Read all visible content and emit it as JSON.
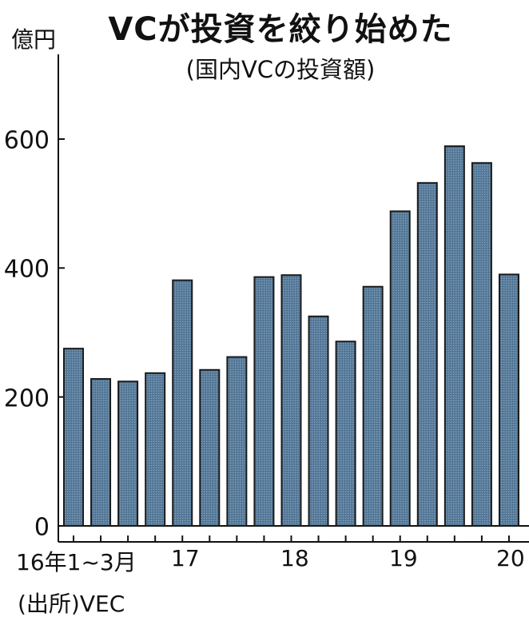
{
  "header": {
    "title": "VCが投資を絞り始めた",
    "subtitle": "(国内VCの投資額)",
    "unit": "億円"
  },
  "footer": {
    "source": "(出所)VEC"
  },
  "axis": {
    "y_ticks": [
      "0",
      "200",
      "400",
      "600"
    ],
    "x_labels": [
      "16年1~3月",
      "17",
      "18",
      "19",
      "20"
    ]
  },
  "colors": {
    "bar_fill": "#5b7f9e",
    "bar_stroke": "#1a1a1a",
    "axis": "#111111"
  },
  "chart_data": {
    "type": "bar",
    "title": "VCが投資を絞り始めた",
    "subtitle": "(国内VCの投資額)",
    "xlabel": "",
    "ylabel": "億円",
    "ylim": [
      0,
      650
    ],
    "yticks": [
      0,
      200,
      400,
      600
    ],
    "grid": false,
    "legend": null,
    "source": "(出所)VEC",
    "categories": [
      "2016 Q1",
      "2016 Q2",
      "2016 Q3",
      "2016 Q4",
      "2017 Q1",
      "2017 Q2",
      "2017 Q3",
      "2017 Q4",
      "2018 Q1",
      "2018 Q2",
      "2018 Q3",
      "2018 Q4",
      "2019 Q1",
      "2019 Q2",
      "2019 Q3",
      "2019 Q4",
      "2020 Q1"
    ],
    "tick_labels": {
      "0": "16年1~3月",
      "4": "17",
      "8": "18",
      "12": "19",
      "16": "20"
    },
    "values": [
      275,
      228,
      224,
      237,
      381,
      242,
      262,
      386,
      389,
      325,
      286,
      371,
      488,
      532,
      589,
      563,
      390
    ]
  }
}
